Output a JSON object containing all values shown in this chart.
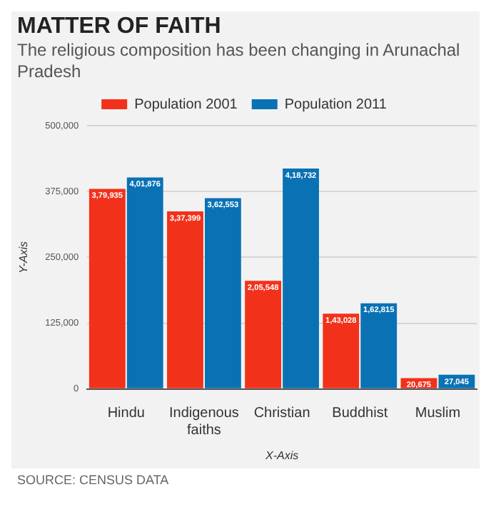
{
  "chart_data": {
    "type": "bar",
    "title": "MATTER OF FAITH",
    "subtitle": "The religious composition has been changing in Arunachal Pradesh",
    "xlabel": "X-Axis",
    "ylabel": "Y-Axis",
    "categories": [
      "Hindu",
      "Indigenous faiths",
      "Christian",
      "Buddhist",
      "Muslim"
    ],
    "series": [
      {
        "name": "Population 2001",
        "color": "#f2311b",
        "values": [
          379935,
          337399,
          205548,
          143028,
          20675
        ],
        "value_labels": [
          "3,79,935",
          "3,37,399",
          "2,05,548",
          "1,43,028",
          "20,675"
        ]
      },
      {
        "name": "Population 2011",
        "color": "#0a72b4",
        "values": [
          401876,
          362553,
          418732,
          162815,
          27045
        ],
        "value_labels": [
          "4,01,876",
          "3,62,553",
          "4,18,732",
          "1,62,815",
          "27,045"
        ]
      }
    ],
    "ylim": [
      0,
      500000
    ],
    "yticks": [
      0,
      {
        "value": 125000,
        "label": "125,000"
      },
      {
        "value": 250000,
        "label": "250,000"
      },
      {
        "value": 375000,
        "label": "375,000"
      },
      {
        "value": 500000,
        "label": "500,000"
      }
    ],
    "grid": "y",
    "legend": "top",
    "annotations": [
      "SOURCE: CENSUS DATA"
    ]
  }
}
